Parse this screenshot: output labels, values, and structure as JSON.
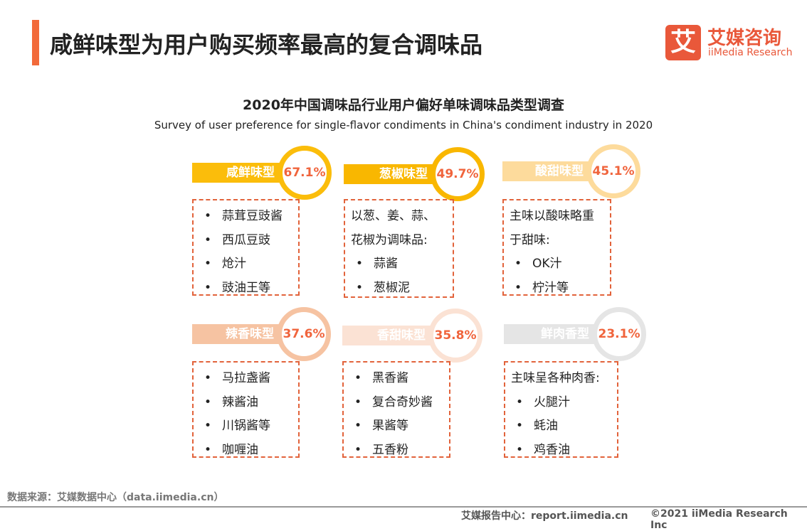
{
  "header": {
    "title": "咸鲜味型为用户购买频率最高的复合调味品",
    "logo_icon": "艾",
    "logo_name": "艾媒咨询",
    "logo_en": "iiMedia Research"
  },
  "subtitle": {
    "cn": "2020年中国调味品行业用户偏好单味调味品类型调查",
    "en": "Survey of user preference for single-flavor condiments in China's condiment industry in 2020"
  },
  "cards": [
    {
      "label": "咸鲜味型",
      "percent": "67.1%",
      "color": "#fbbd0b",
      "intro": [],
      "items": [
        "蒜茸豆豉酱",
        "西瓜豆豉",
        "炝汁",
        "豉油王等"
      ]
    },
    {
      "label": "葱椒味型",
      "percent": "49.7%",
      "color": "#f9b700",
      "intro": [
        "以葱、姜、蒜、",
        "花椒为调味品:"
      ],
      "items": [
        "蒜酱",
        "葱椒泥"
      ]
    },
    {
      "label": "酸甜味型",
      "percent": "45.1%",
      "color": "#fddb9c",
      "intro": [
        "主味以酸味略重",
        "于甜味:"
      ],
      "items": [
        "OK汁",
        "柠汁等"
      ]
    },
    {
      "label": "辣香味型",
      "percent": "37.6%",
      "color": "#f6c3a2",
      "intro": [],
      "items": [
        "马拉盏酱",
        "辣酱油",
        "川锅酱等",
        "咖喱油"
      ]
    },
    {
      "label": "香甜味型",
      "percent": "35.8%",
      "color": "#fbe2d4",
      "intro": [],
      "items": [
        "黑香酱",
        "复合奇妙酱",
        "果酱等",
        "五香粉"
      ]
    },
    {
      "label": "鲜肉香型",
      "percent": "23.1%",
      "color": "#e5e5e5",
      "intro": [
        "主味呈各种肉香:"
      ],
      "items": [
        "火腿汁",
        "蚝油",
        "鸡香油"
      ]
    }
  ],
  "footer": {
    "source": "数据来源：艾媒数据中心（data.iimedia.cn）",
    "report": "艾媒报告中心：report.iimedia.cn",
    "copyright": "©2021  iiMedia Research  Inc"
  }
}
